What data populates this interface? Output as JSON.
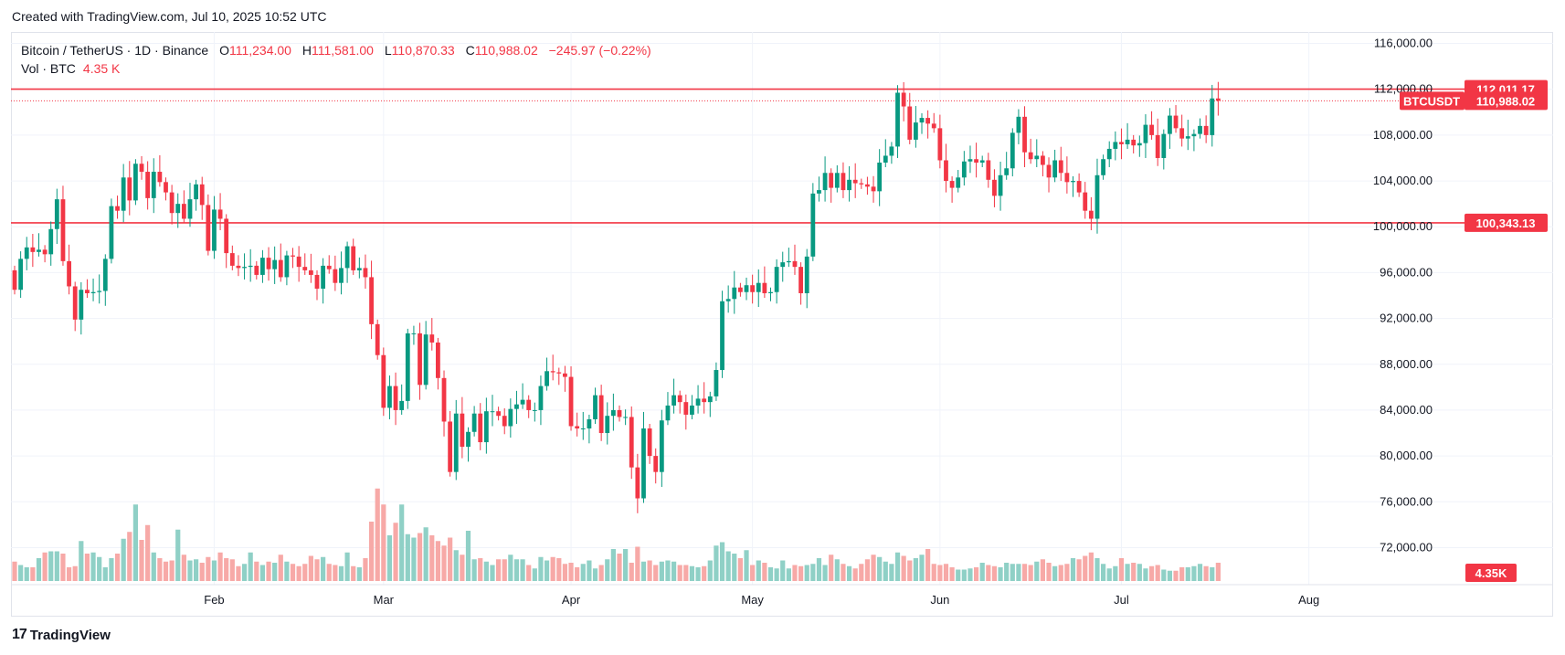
{
  "caption": "Created with TradingView.com, Jul 10, 2025 10:52 UTC",
  "legend": {
    "symbol": "Bitcoin / TetherUS · 1D · Binance",
    "open_label": "O",
    "open": "111,234.00",
    "high_label": "H",
    "high": "111,581.00",
    "low_label": "L",
    "low": "110,870.33",
    "close_label": "C",
    "close": "110,988.02",
    "change": "−245.97 (−0.22%)",
    "vol_label": "Vol · BTC",
    "vol_value": "4.35 K"
  },
  "footer": {
    "logo_text": "TradingView",
    "logo_mark": "17"
  },
  "colors": {
    "up": "#089981",
    "down": "#f23645",
    "up_vol": "#8fd0c6",
    "down_vol": "#f7a9a7",
    "level": "#f23645",
    "grid": "#f0f3fa"
  },
  "chart_data": {
    "type": "candlestick",
    "symbol_tag": "BTCUSDT",
    "y_range": [
      71000,
      117000
    ],
    "y_ticks": [
      72000,
      76000,
      80000,
      84000,
      88000,
      92000,
      96000,
      100000,
      104000,
      108000,
      112000,
      116000
    ],
    "y_tick_labels": [
      "72,000.00",
      "76,000.00",
      "80,000.00",
      "84,000.00",
      "88,000.00",
      "92,000.00",
      "96,000.00",
      "100,000.00",
      "104,000.00",
      "108,000.00",
      "112,000.00",
      "116,000.00"
    ],
    "x_ticks": [
      {
        "label": "Feb",
        "index": 33
      },
      {
        "label": "Mar",
        "index": 61
      },
      {
        "label": "Apr",
        "index": 92
      },
      {
        "label": "May",
        "index": 122
      },
      {
        "label": "Jun",
        "index": 153
      },
      {
        "label": "Jul",
        "index": 183
      },
      {
        "label": "Aug",
        "index": 214
      }
    ],
    "total_slots": 220,
    "horizontal_levels": [
      {
        "value": 112011.17,
        "label": "112,011.17"
      },
      {
        "value": 100343.13,
        "label": "100,343.13"
      }
    ],
    "last_price": {
      "value": 110988.02,
      "label": "110,988.02"
    },
    "volume_tag": "4.35K",
    "closes": [
      94500,
      97200,
      98200,
      97800,
      98000,
      97600,
      99800,
      102400,
      97000,
      94800,
      91900,
      94500,
      94200,
      94300,
      94400,
      97200,
      101800,
      101400,
      104300,
      102300,
      105500,
      104800,
      102500,
      104800,
      103900,
      103000,
      101200,
      102000,
      100700,
      102400,
      103700,
      101900,
      97900,
      101500,
      100700,
      97700,
      96600,
      96400,
      96500,
      96600,
      95800,
      97300,
      96300,
      97100,
      95600,
      97500,
      97400,
      96500,
      96200,
      95800,
      94600,
      96600,
      96300,
      95100,
      96400,
      98300,
      96200,
      96400,
      95600,
      91500,
      88800,
      84200,
      86100,
      84000,
      84800,
      90700,
      90700,
      86200,
      90600,
      89900,
      86800,
      83000,
      78600,
      83700,
      80800,
      82100,
      83700,
      81200,
      83900,
      83900,
      83500,
      82600,
      84100,
      84500,
      84900,
      84000,
      84000,
      86100,
      87400,
      87300,
      87200,
      86900,
      82600,
      82400,
      82400,
      83200,
      85300,
      82000,
      83500,
      84000,
      83400,
      83400,
      79000,
      76300,
      82400,
      80000,
      78600,
      83100,
      84400,
      85300,
      84700,
      83600,
      84400,
      85000,
      84700,
      85200,
      87500,
      93500,
      93700,
      94700,
      94300,
      94900,
      94300,
      95100,
      94200,
      94300,
      96500,
      96900,
      97000,
      96500,
      94200,
      97400,
      102900,
      103200,
      104700,
      103400,
      104700,
      103200,
      104100,
      103800,
      103700,
      103500,
      103100,
      105600,
      106200,
      107000,
      111700,
      110500,
      107600,
      109100,
      109500,
      109000,
      108600,
      105800,
      104000,
      103400,
      104300,
      105700,
      105900,
      105600,
      105800,
      104100,
      102700,
      104500,
      105100,
      108200,
      109600,
      106500,
      105900,
      106200,
      105400,
      104300,
      105800,
      104700,
      103900,
      104000,
      103000,
      101400,
      100700,
      104500,
      105900,
      106800,
      107400,
      107200,
      107600,
      107100,
      107300,
      108900,
      108000,
      106000,
      108100,
      109700,
      108600,
      107700,
      107900,
      108100,
      108800,
      108000,
      111200,
      111000
    ],
    "opens": [
      96200,
      94500,
      97200,
      98200,
      97800,
      98000,
      97600,
      99800,
      102400,
      97000,
      94800,
      91900,
      94500,
      94200,
      94300,
      94400,
      97200,
      101800,
      101400,
      104300,
      102300,
      105500,
      104800,
      102500,
      104800,
      103900,
      103000,
      101200,
      102000,
      100700,
      102400,
      103700,
      101900,
      97900,
      101500,
      100700,
      97700,
      96600,
      96400,
      96500,
      96600,
      95800,
      97300,
      96300,
      97100,
      95600,
      97500,
      97400,
      96500,
      96200,
      95800,
      94600,
      96600,
      96300,
      95100,
      96400,
      98300,
      96200,
      96400,
      95600,
      91500,
      88800,
      84200,
      86100,
      84000,
      84800,
      90700,
      90700,
      86200,
      90600,
      89900,
      86800,
      83000,
      78600,
      83700,
      80800,
      82100,
      83700,
      81200,
      83900,
      83900,
      83500,
      82600,
      84100,
      84500,
      84900,
      84000,
      84000,
      86100,
      87400,
      87300,
      87200,
      86900,
      82600,
      82400,
      82400,
      83200,
      85300,
      82000,
      83500,
      84000,
      83400,
      83400,
      79000,
      76300,
      82400,
      80000,
      78600,
      83100,
      84400,
      85300,
      84700,
      83600,
      84400,
      85000,
      84700,
      85200,
      87500,
      93500,
      93700,
      94700,
      94300,
      94900,
      94300,
      95100,
      94200,
      94300,
      96500,
      96900,
      97000,
      96500,
      94200,
      97400,
      102900,
      103200,
      104700,
      103400,
      104700,
      103200,
      104100,
      103800,
      103700,
      103500,
      103100,
      105600,
      106200,
      107000,
      111700,
      110500,
      107600,
      109100,
      109500,
      109000,
      108600,
      105800,
      104000,
      103400,
      104300,
      105700,
      105900,
      105600,
      105800,
      104100,
      102700,
      104500,
      105100,
      108200,
      109600,
      106500,
      105900,
      106200,
      105400,
      104300,
      105800,
      104700,
      103900,
      104000,
      103000,
      101400,
      100700,
      104500,
      105900,
      106800,
      107400,
      107200,
      107600,
      107100,
      107300,
      108900,
      108000,
      106000,
      108100,
      109700,
      108600,
      107700,
      107900,
      108100,
      108800,
      108000,
      111200
    ],
    "volumes": [
      17,
      14,
      12,
      12,
      20,
      25,
      26,
      26,
      24,
      12,
      13,
      35,
      24,
      25,
      21,
      12,
      20,
      24,
      37,
      43,
      67,
      36,
      49,
      25,
      20,
      17,
      18,
      45,
      23,
      18,
      19,
      16,
      21,
      18,
      25,
      20,
      19,
      13,
      15,
      25,
      17,
      14,
      17,
      16,
      23,
      17,
      15,
      13,
      15,
      22,
      19,
      21,
      15,
      14,
      13,
      25,
      13,
      12,
      20,
      52,
      81,
      67,
      40,
      51,
      67,
      41,
      38,
      42,
      47,
      40,
      35,
      31,
      38,
      27,
      23,
      44,
      19,
      20,
      17,
      14,
      19,
      19,
      23,
      19,
      19,
      14,
      11,
      21,
      18,
      21,
      20,
      15,
      16,
      12,
      15,
      18,
      11,
      14,
      19,
      28,
      24,
      28,
      16,
      30,
      17,
      18,
      14,
      17,
      18,
      17,
      14,
      14,
      13,
      12,
      13,
      18,
      31,
      34,
      26,
      24,
      20,
      27,
      14,
      18,
      16,
      12,
      11,
      18,
      11,
      14,
      13,
      14,
      15,
      20,
      14,
      23,
      19,
      15,
      13,
      11,
      15,
      19,
      23,
      21,
      17,
      15,
      25,
      22,
      18,
      20,
      23,
      28,
      15,
      14,
      15,
      12,
      10,
      10,
      11,
      12,
      16,
      14,
      13,
      12,
      16,
      15,
      15,
      15,
      14,
      17,
      19,
      16,
      13,
      14,
      15,
      20,
      19,
      22,
      25,
      20,
      15,
      11,
      13,
      20,
      15,
      16,
      15,
      11,
      13,
      14,
      10,
      9,
      9,
      12,
      12,
      13,
      15,
      13,
      12,
      16,
      15,
      8
    ]
  }
}
